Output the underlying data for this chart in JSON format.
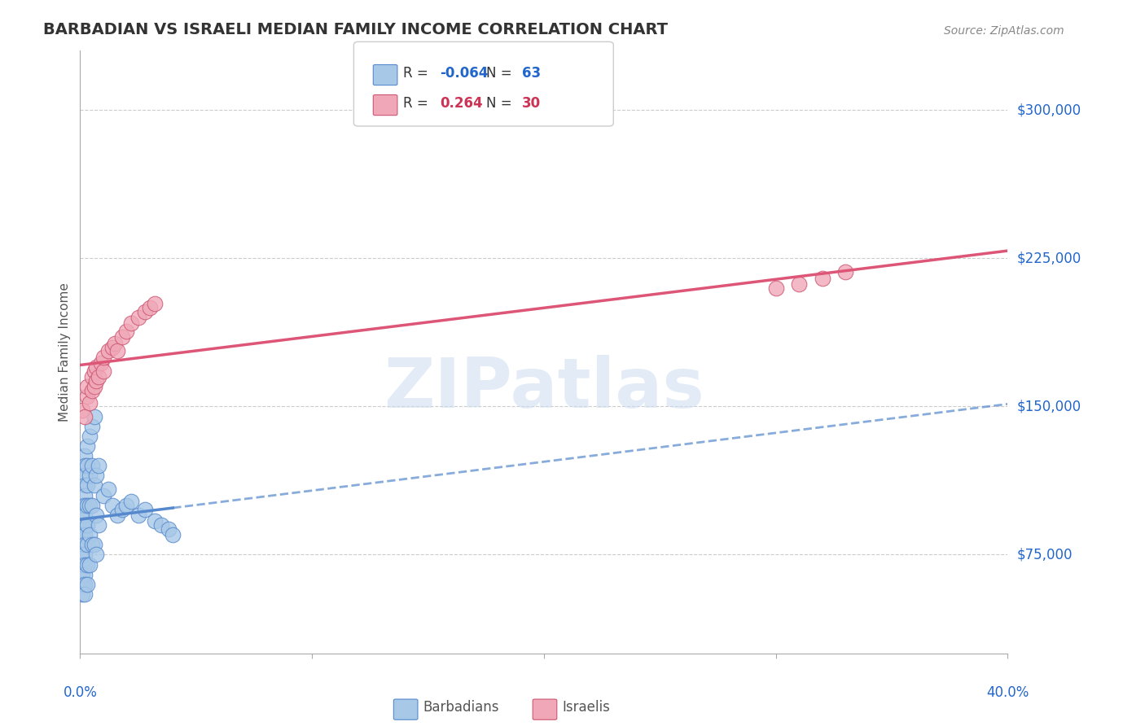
{
  "title": "BARBADIAN VS ISRAELI MEDIAN FAMILY INCOME CORRELATION CHART",
  "source": "Source: ZipAtlas.com",
  "ylabel": "Median Family Income",
  "yticks": [
    75000,
    150000,
    225000,
    300000
  ],
  "ytick_labels": [
    "$75,000",
    "$150,000",
    "$225,000",
    "$300,000"
  ],
  "xlim": [
    0.0,
    0.4
  ],
  "ylim": [
    25000,
    330000
  ],
  "legend_r_barbadian": "-0.064",
  "legend_n_barbadian": "63",
  "legend_r_israeli": "0.264",
  "legend_n_israeli": "30",
  "barbadian_fill": "#a8c8e8",
  "barbadian_edge": "#5588cc",
  "israeli_fill": "#f0a8b8",
  "israeli_edge": "#cc5570",
  "barbadian_line": "#5588cc",
  "israeli_line": "#dd5577",
  "barbadians_x": [
    0.001,
    0.001,
    0.001,
    0.001,
    0.001,
    0.001,
    0.001,
    0.001,
    0.001,
    0.001,
    0.002,
    0.002,
    0.002,
    0.002,
    0.002,
    0.002,
    0.002,
    0.002,
    0.002,
    0.002,
    0.002,
    0.002,
    0.002,
    0.002,
    0.002,
    0.003,
    0.003,
    0.003,
    0.003,
    0.003,
    0.003,
    0.003,
    0.003,
    0.004,
    0.004,
    0.004,
    0.004,
    0.004,
    0.005,
    0.005,
    0.005,
    0.005,
    0.006,
    0.006,
    0.006,
    0.007,
    0.007,
    0.007,
    0.008,
    0.008,
    0.01,
    0.012,
    0.014,
    0.016,
    0.018,
    0.02,
    0.022,
    0.025,
    0.028,
    0.032,
    0.035,
    0.038,
    0.04
  ],
  "barbadians_y": [
    100000,
    95000,
    90000,
    85000,
    80000,
    75000,
    70000,
    65000,
    60000,
    55000,
    125000,
    120000,
    115000,
    110000,
    105000,
    100000,
    95000,
    90000,
    85000,
    80000,
    75000,
    70000,
    65000,
    60000,
    55000,
    130000,
    120000,
    110000,
    100000,
    90000,
    80000,
    70000,
    60000,
    135000,
    115000,
    100000,
    85000,
    70000,
    140000,
    120000,
    100000,
    80000,
    145000,
    110000,
    80000,
    115000,
    95000,
    75000,
    120000,
    90000,
    105000,
    108000,
    100000,
    95000,
    98000,
    100000,
    102000,
    95000,
    98000,
    92000,
    90000,
    88000,
    85000
  ],
  "israelis_x": [
    0.001,
    0.002,
    0.003,
    0.003,
    0.004,
    0.005,
    0.005,
    0.006,
    0.006,
    0.007,
    0.007,
    0.008,
    0.009,
    0.01,
    0.01,
    0.012,
    0.014,
    0.015,
    0.016,
    0.018,
    0.02,
    0.022,
    0.025,
    0.028,
    0.03,
    0.032,
    0.3,
    0.31,
    0.32,
    0.33
  ],
  "israelis_y": [
    148000,
    145000,
    155000,
    160000,
    152000,
    158000,
    165000,
    160000,
    168000,
    163000,
    170000,
    165000,
    172000,
    168000,
    175000,
    178000,
    180000,
    182000,
    178000,
    185000,
    188000,
    192000,
    195000,
    198000,
    200000,
    202000,
    210000,
    212000,
    215000,
    218000
  ]
}
